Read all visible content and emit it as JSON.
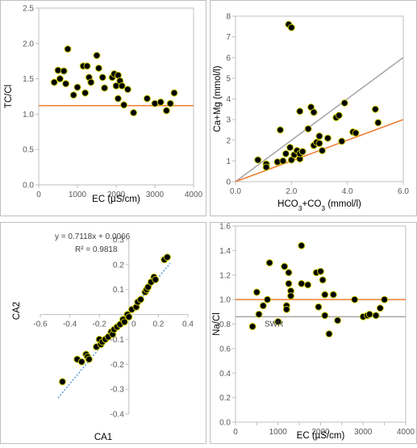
{
  "colors": {
    "point_fill": "#000000",
    "point_stroke": "#c8c800",
    "orange_line": "#ed7d31",
    "gray_line": "#a5a5a5",
    "trend_line": "#5b9bd5",
    "axis": "#bfbfbf",
    "border": "#bfbfbf"
  },
  "chart_data": [
    {
      "id": "tc_cl",
      "type": "scatter",
      "xlabel": "EC (µS/cm)",
      "ylabel": "TC/Cl",
      "xlim": [
        0,
        4000
      ],
      "ylim": [
        0,
        2.5
      ],
      "xticks": [
        0,
        1000,
        2000,
        3000,
        4000
      ],
      "yticks": [
        0.0,
        0.5,
        1.0,
        1.5,
        2.0,
        2.5
      ],
      "xtick_labels": [
        "0",
        "1000",
        "2000",
        "3000",
        "4000"
      ],
      "ytick_labels": [
        "0.0",
        "0.5",
        "1.0",
        "1.5",
        "2.0",
        "2.5"
      ],
      "grid": false,
      "hlines": [
        {
          "y": 1.12,
          "color": "#ed7d31"
        }
      ],
      "points": [
        [
          400,
          1.45
        ],
        [
          500,
          1.62
        ],
        [
          550,
          1.5
        ],
        [
          650,
          1.61
        ],
        [
          700,
          1.43
        ],
        [
          750,
          1.92
        ],
        [
          900,
          1.27
        ],
        [
          1000,
          1.38
        ],
        [
          1150,
          1.68
        ],
        [
          1200,
          1.3
        ],
        [
          1250,
          1.68
        ],
        [
          1300,
          1.52
        ],
        [
          1350,
          1.45
        ],
        [
          1500,
          1.83
        ],
        [
          1550,
          1.65
        ],
        [
          1650,
          1.52
        ],
        [
          1700,
          1.37
        ],
        [
          1900,
          1.52
        ],
        [
          1950,
          1.57
        ],
        [
          2000,
          1.4
        ],
        [
          2050,
          1.55
        ],
        [
          2100,
          1.47
        ],
        [
          2050,
          1.22
        ],
        [
          2150,
          1.4
        ],
        [
          2200,
          1.13
        ],
        [
          2300,
          1.35
        ],
        [
          2450,
          1.02
        ],
        [
          2800,
          1.22
        ],
        [
          3000,
          1.15
        ],
        [
          3150,
          1.17
        ],
        [
          3300,
          1.05
        ],
        [
          3400,
          1.15
        ],
        [
          3500,
          1.3
        ]
      ]
    },
    {
      "id": "camg_hco3",
      "type": "scatter",
      "xlabel_parts": [
        {
          "t": "HCO",
          "sub": false
        },
        {
          "t": "3",
          "sub": true
        },
        {
          "t": "+CO",
          "sub": false
        },
        {
          "t": "3",
          "sub": true
        },
        {
          "t": " (mmol/l)",
          "sub": false
        }
      ],
      "ylabel": "Ca+Mg (mmol/l)",
      "xlim": [
        0,
        6
      ],
      "ylim": [
        0,
        8
      ],
      "xticks": [
        0,
        2,
        4,
        6
      ],
      "yticks": [
        0,
        1,
        2,
        3,
        4,
        5,
        6,
        7,
        8
      ],
      "xtick_labels": [
        "0.0",
        "2.0",
        "4.0",
        "6.0"
      ],
      "ytick_labels": [
        "0",
        "1",
        "2",
        "3",
        "4",
        "5",
        "6",
        "7",
        "8"
      ],
      "grid": false,
      "lines": [
        {
          "x1": 0,
          "y1": 0,
          "x2": 6,
          "y2": 6,
          "color": "#a5a5a5"
        },
        {
          "x1": 0,
          "y1": 0,
          "x2": 6,
          "y2": 3,
          "color": "#ed7d31"
        }
      ],
      "points": [
        [
          0.8,
          1.05
        ],
        [
          1.1,
          0.85
        ],
        [
          1.1,
          0.7
        ],
        [
          1.5,
          0.95
        ],
        [
          1.6,
          2.5
        ],
        [
          1.7,
          1.0
        ],
        [
          1.8,
          1.35
        ],
        [
          1.9,
          7.6
        ],
        [
          1.95,
          1.65
        ],
        [
          2.0,
          7.45
        ],
        [
          2.0,
          1.05
        ],
        [
          2.1,
          1.3
        ],
        [
          2.2,
          1.5
        ],
        [
          2.3,
          1.1
        ],
        [
          2.3,
          1.35
        ],
        [
          2.3,
          3.4
        ],
        [
          2.4,
          1.45
        ],
        [
          2.6,
          2.55
        ],
        [
          2.7,
          3.6
        ],
        [
          2.8,
          3.35
        ],
        [
          2.8,
          1.75
        ],
        [
          2.9,
          1.9
        ],
        [
          3.0,
          2.2
        ],
        [
          3.0,
          1.85
        ],
        [
          3.1,
          1.5
        ],
        [
          3.3,
          2.1
        ],
        [
          3.6,
          3.1
        ],
        [
          3.7,
          3.2
        ],
        [
          3.8,
          1.95
        ],
        [
          3.9,
          3.8
        ],
        [
          4.2,
          2.4
        ],
        [
          4.3,
          2.35
        ],
        [
          5.0,
          3.5
        ],
        [
          5.1,
          2.85
        ]
      ]
    },
    {
      "id": "ca2_ca1",
      "type": "scatter",
      "xlabel": "CA1",
      "ylabel": "CA2",
      "xlim": [
        -0.6,
        0.4
      ],
      "ylim": [
        -0.4,
        0.3
      ],
      "xticks": [
        -0.6,
        -0.4,
        -0.2,
        0,
        0.2,
        0.4
      ],
      "yticks": [
        -0.4,
        -0.3,
        -0.2,
        -0.1,
        0,
        0.1,
        0.2,
        0.3
      ],
      "xtick_labels": [
        "-0.6",
        "-0.4",
        "-0.2",
        "0",
        "0.2",
        "0.4"
      ],
      "ytick_labels": [
        "-0.4",
        "-0.3",
        "-0.2",
        "-0.1",
        "0",
        "0.1",
        "0.2",
        "0.3"
      ],
      "grid": false,
      "equation": "y = 0.7118x + 0.0066",
      "r2": "R² = 0.9818",
      "trendline": {
        "slope": 0.7118,
        "intercept": 0.0066,
        "x_from": -0.48,
        "x_to": 0.28,
        "color": "#5b9bd5"
      },
      "points": [
        [
          -0.45,
          -0.27
        ],
        [
          -0.35,
          -0.18
        ],
        [
          -0.32,
          -0.19
        ],
        [
          -0.29,
          -0.16
        ],
        [
          -0.28,
          -0.17
        ],
        [
          -0.27,
          -0.18
        ],
        [
          -0.22,
          -0.13
        ],
        [
          -0.2,
          -0.1
        ],
        [
          -0.19,
          -0.12
        ],
        [
          -0.18,
          -0.11
        ],
        [
          -0.16,
          -0.1
        ],
        [
          -0.14,
          -0.09
        ],
        [
          -0.12,
          -0.07
        ],
        [
          -0.11,
          -0.08
        ],
        [
          -0.1,
          -0.06
        ],
        [
          -0.08,
          -0.05
        ],
        [
          -0.06,
          -0.04
        ],
        [
          -0.04,
          -0.02
        ],
        [
          -0.03,
          -0.03
        ],
        [
          -0.01,
          0.0
        ],
        [
          0.0,
          -0.01
        ],
        [
          0.02,
          0.02
        ],
        [
          0.05,
          0.03
        ],
        [
          0.06,
          0.05
        ],
        [
          0.08,
          0.06
        ],
        [
          0.11,
          0.09
        ],
        [
          0.12,
          0.1
        ],
        [
          0.13,
          0.11
        ],
        [
          0.15,
          0.13
        ],
        [
          0.17,
          0.15
        ],
        [
          0.18,
          0.14
        ],
        [
          0.24,
          0.22
        ],
        [
          0.26,
          0.23
        ]
      ]
    },
    {
      "id": "na_cl",
      "type": "scatter",
      "xlabel": "EC (µS/cm)",
      "ylabel": "Na/Cl",
      "xlim": [
        0,
        4000
      ],
      "ylim": [
        0,
        1.6
      ],
      "xticks": [
        0,
        500,
        1000,
        1500,
        2000,
        2500,
        3000,
        3500,
        4000
      ],
      "yticks": [
        0.0,
        0.2,
        0.4,
        0.6,
        0.8,
        1.0,
        1.2,
        1.4,
        1.6
      ],
      "xtick_labels": [
        "0",
        "",
        "1000",
        "",
        "2000",
        "",
        "3000",
        "",
        "4000"
      ],
      "ytick_labels": [
        "0.0",
        "0.2",
        "0.4",
        "0.6",
        "0.8",
        "1.0",
        "1.2",
        "1.4",
        "1.6"
      ],
      "grid": false,
      "hlines": [
        {
          "y": 1.0,
          "color": "#ed7d31"
        },
        {
          "y": 0.86,
          "color": "#a5a5a5"
        }
      ],
      "swr_label": "SWR",
      "points": [
        [
          400,
          0.78
        ],
        [
          500,
          1.06
        ],
        [
          550,
          0.88
        ],
        [
          650,
          0.95
        ],
        [
          750,
          1.0
        ],
        [
          800,
          1.3
        ],
        [
          1000,
          0.82
        ],
        [
          1150,
          1.27
        ],
        [
          1200,
          0.95
        ],
        [
          1200,
          0.92
        ],
        [
          1250,
          1.22
        ],
        [
          1250,
          1.13
        ],
        [
          1300,
          1.07
        ],
        [
          1300,
          1.03
        ],
        [
          1550,
          1.44
        ],
        [
          1550,
          1.13
        ],
        [
          1700,
          1.12
        ],
        [
          1900,
          1.22
        ],
        [
          1950,
          0.94
        ],
        [
          2000,
          1.23
        ],
        [
          2050,
          1.16
        ],
        [
          2100,
          1.04
        ],
        [
          2100,
          0.87
        ],
        [
          2200,
          0.72
        ],
        [
          2300,
          1.04
        ],
        [
          2400,
          0.83
        ],
        [
          2800,
          1.0
        ],
        [
          3000,
          0.86
        ],
        [
          3100,
          0.87
        ],
        [
          3150,
          0.88
        ],
        [
          3300,
          0.87
        ],
        [
          3400,
          0.93
        ],
        [
          3500,
          1.0
        ]
      ]
    }
  ]
}
